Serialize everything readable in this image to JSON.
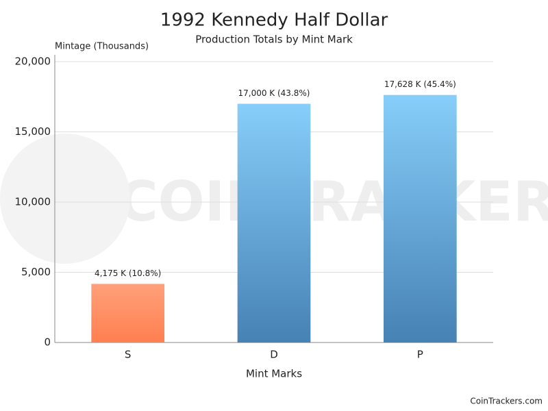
{
  "chart_data": {
    "type": "bar",
    "title": "1992 Kennedy Half Dollar",
    "subtitle": "Production Totals by Mint Mark",
    "y_label": "Mintage (Thousands)",
    "x_label": "Mint Marks",
    "categories": [
      "S",
      "D",
      "P"
    ],
    "values": [
      4175,
      17000,
      17628
    ],
    "value_labels": [
      "4,175 K (10.8%)",
      "17,000 K (43.8%)",
      "17,628 K (45.4%)"
    ],
    "colors": [
      [
        "#ffa07a",
        "#ff7f50"
      ],
      [
        "#87cefa",
        "#4682b4"
      ],
      [
        "#87cefa",
        "#4682b4"
      ]
    ],
    "ylim": [
      0,
      20000
    ],
    "yticks": [
      0,
      {
        "value": 5000,
        "label": "5,000"
      },
      {
        "value": 10000,
        "label": "10,000"
      },
      {
        "value": 15000,
        "label": "15,000"
      },
      {
        "value": 20000,
        "label": "20,000"
      }
    ],
    "grid": true,
    "watermark": "COINTRACKERS",
    "footer": "CoinTrackers.com"
  }
}
